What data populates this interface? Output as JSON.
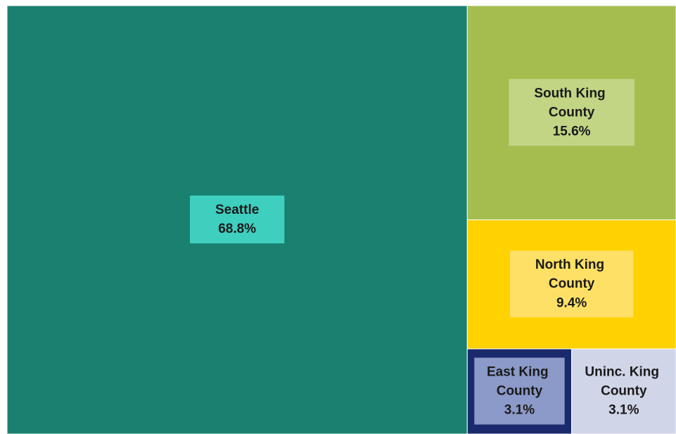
{
  "chart_data": {
    "type": "treemap",
    "categories": [
      "Seattle",
      "South King County",
      "North King County",
      "East King County",
      "Uninc. King County"
    ],
    "values": [
      68.8,
      15.6,
      9.4,
      3.1,
      3.1
    ],
    "value_labels": [
      "68.8%",
      "15.6%",
      "9.4%",
      "3.1%",
      "3.1%"
    ],
    "colors": [
      "#1a8070",
      "#a5bd4f",
      "#ffd200",
      "#1a2a6c",
      "#d0d5e8"
    ],
    "label_colors": [
      "#3ecfbf",
      "#c2d585",
      "#ffe066",
      "#8b9ac8",
      "#d0d5e8"
    ]
  }
}
